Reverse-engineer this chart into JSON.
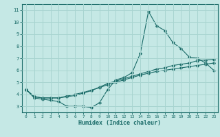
{
  "xlabel": "Humidex (Indice chaleur)",
  "ylabel": "",
  "background_color": "#c5e8e5",
  "grid_color": "#a8d4d0",
  "line_color": "#1a6b68",
  "xlim": [
    -0.5,
    23.5
  ],
  "ylim": [
    2.5,
    11.5
  ],
  "xticks": [
    0,
    1,
    2,
    3,
    4,
    5,
    6,
    7,
    8,
    9,
    10,
    11,
    12,
    13,
    14,
    15,
    16,
    17,
    18,
    19,
    20,
    21,
    22,
    23
  ],
  "yticks": [
    3,
    4,
    5,
    6,
    7,
    8,
    9,
    10,
    11
  ],
  "curve1_x": [
    0,
    1,
    2,
    3,
    4,
    5,
    6,
    7,
    8,
    9,
    10,
    11,
    12,
    13,
    14,
    15,
    16,
    17,
    18,
    19,
    20,
    21,
    22,
    23
  ],
  "curve1_y": [
    4.4,
    3.7,
    3.6,
    3.5,
    3.4,
    3.0,
    3.0,
    3.0,
    2.9,
    3.3,
    4.4,
    5.2,
    5.4,
    5.8,
    7.4,
    10.9,
    9.7,
    9.3,
    8.3,
    7.8,
    7.1,
    7.0,
    6.6,
    6.0
  ],
  "curve2_x": [
    0,
    1,
    2,
    3,
    4,
    5,
    6,
    7,
    8,
    9,
    10,
    11,
    12,
    13,
    14,
    15,
    16,
    17,
    18,
    19,
    20,
    21,
    22,
    23
  ],
  "curve2_y": [
    4.4,
    3.8,
    3.7,
    3.7,
    3.7,
    3.8,
    3.9,
    4.1,
    4.3,
    4.6,
    4.9,
    5.1,
    5.3,
    5.5,
    5.7,
    5.9,
    6.1,
    6.2,
    6.4,
    6.5,
    6.6,
    6.8,
    6.85,
    6.9
  ],
  "curve3_x": [
    0,
    1,
    2,
    3,
    4,
    5,
    6,
    7,
    8,
    9,
    10,
    11,
    12,
    13,
    14,
    15,
    16,
    17,
    18,
    19,
    20,
    21,
    22,
    23
  ],
  "curve3_y": [
    4.4,
    3.8,
    3.7,
    3.7,
    3.7,
    3.85,
    4.0,
    4.15,
    4.35,
    4.55,
    4.8,
    5.0,
    5.2,
    5.4,
    5.6,
    5.75,
    5.9,
    6.0,
    6.1,
    6.2,
    6.3,
    6.4,
    6.5,
    6.6
  ]
}
